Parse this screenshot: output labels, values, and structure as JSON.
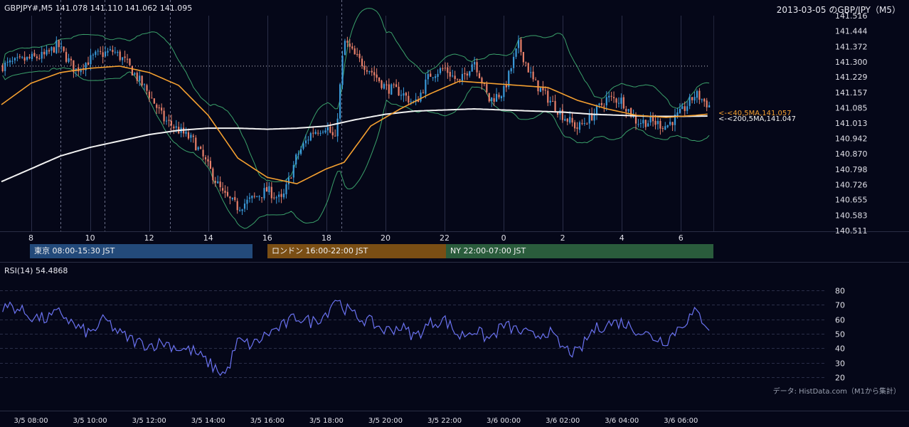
{
  "header": {
    "symbol_info": "GBPJPY#,M5 141.078 141.110 141.062 141.095",
    "title": "2013-03-05 のGBP/JPY（M5）"
  },
  "sessions": [
    {
      "label": "東京 08:00-15:30 JST",
      "color": "#234a7a"
    },
    {
      "label": "ロンドン 16:00-22:00 JST",
      "color": "#7a4e14"
    },
    {
      "label": "NY 22:00-07:00 JST",
      "color": "#2a5c3c"
    }
  ],
  "rsi": {
    "label": "RSI(14) 54.4868"
  },
  "credit": "データ: HistData.com（M1から集計）",
  "chart_data": [
    {
      "type": "candlestick",
      "name": "price",
      "y_ticks": [
        "141.516",
        "141.444",
        "141.372",
        "141.300",
        "141.229",
        "141.157",
        "141.085",
        "141.013",
        "140.942",
        "140.870",
        "140.798",
        "140.726",
        "140.655",
        "140.583",
        "140.511"
      ],
      "ylim": [
        140.511,
        141.516
      ],
      "x_ticks": [
        "8",
        "10",
        "12",
        "14",
        "16",
        "18",
        "20",
        "22",
        "0",
        "2",
        "4",
        "6"
      ],
      "x_tick_hours": [
        8,
        10,
        12,
        14,
        16,
        18,
        20,
        22,
        24,
        26,
        28,
        30
      ],
      "xlim_hours": [
        7.0,
        31.1
      ],
      "ma_labels": [
        {
          "text": "<-<40,5MA,141.057",
          "color": "#f5a030",
          "value": 141.057
        },
        {
          "text": "<-<200,5MA,141.047",
          "color": "#f0f0f0",
          "value": 141.047
        }
      ],
      "key_points": {
        "hours": [
          7.0,
          7.8,
          8.5,
          8.9,
          9.5,
          10.2,
          10.8,
          11.2,
          12.0,
          12.5,
          13.0,
          13.5,
          14.0,
          14.5,
          15.0,
          15.5,
          16.0,
          16.5,
          17.0,
          17.5,
          18.0,
          18.3,
          18.6,
          19.0,
          19.5,
          20.0,
          20.5,
          21.0,
          21.5,
          22.0,
          22.5,
          23.0,
          23.5,
          24.0,
          24.5,
          25.0,
          25.5,
          26.0,
          26.5,
          27.0,
          27.5,
          28.0,
          28.5,
          29.0,
          29.5,
          30.0,
          30.5,
          31.0
        ],
        "close": [
          141.28,
          141.31,
          141.33,
          141.38,
          141.26,
          141.33,
          141.35,
          141.3,
          141.15,
          141.03,
          140.98,
          140.93,
          140.81,
          140.68,
          140.62,
          140.66,
          140.7,
          140.65,
          140.86,
          140.97,
          141.0,
          140.93,
          141.4,
          141.32,
          141.26,
          141.18,
          141.16,
          141.1,
          141.24,
          141.27,
          141.2,
          141.31,
          141.12,
          141.16,
          141.38,
          141.21,
          141.13,
          141.05,
          140.99,
          141.05,
          141.13,
          141.12,
          141.02,
          141.02,
          141.0,
          141.06,
          141.15,
          141.09
        ]
      },
      "sma40_points": {
        "hours": [
          7.0,
          8.0,
          9.0,
          10.0,
          11.0,
          12.0,
          13.0,
          14.0,
          15.0,
          16.0,
          17.0,
          18.0,
          18.6,
          19.5,
          20.5,
          21.5,
          22.5,
          23.5,
          24.5,
          25.5,
          26.5,
          27.5,
          28.5,
          29.5,
          30.5,
          31.0
        ],
        "values": [
          141.1,
          141.2,
          141.25,
          141.27,
          141.28,
          141.25,
          141.19,
          141.05,
          140.85,
          140.76,
          140.73,
          140.8,
          140.83,
          141.0,
          141.08,
          141.15,
          141.21,
          141.2,
          141.19,
          141.18,
          141.12,
          141.08,
          141.05,
          141.04,
          141.05,
          141.057
        ]
      },
      "sma200_points": {
        "hours": [
          7.0,
          8.0,
          9.0,
          10.0,
          11.0,
          12.0,
          13.0,
          14.0,
          15.0,
          16.0,
          17.0,
          18.0,
          19.0,
          20.0,
          21.0,
          22.0,
          23.0,
          24.0,
          25.0,
          26.0,
          27.0,
          28.0,
          29.0,
          30.0,
          31.0
        ],
        "values": [
          140.74,
          140.8,
          140.86,
          140.9,
          140.93,
          140.96,
          140.98,
          140.99,
          140.99,
          140.985,
          140.99,
          141.0,
          141.03,
          141.055,
          141.07,
          141.075,
          141.08,
          141.075,
          141.07,
          141.065,
          141.055,
          141.05,
          141.045,
          141.045,
          141.047
        ]
      },
      "dotted_level": 141.28
    },
    {
      "type": "line",
      "name": "RSI(14)",
      "y_ticks": [
        "80",
        "70",
        "60",
        "50",
        "40",
        "30",
        "20"
      ],
      "ylim": [
        20,
        80
      ],
      "x_ticks": [
        "3/5 08:00",
        "3/5 10:00",
        "3/5 12:00",
        "3/5 14:00",
        "3/5 16:00",
        "3/5 18:00",
        "3/5 20:00",
        "3/5 22:00",
        "3/6 00:00",
        "3/6 02:00",
        "3/6 04:00",
        "3/6 06:00"
      ],
      "key_points": {
        "hours": [
          7.0,
          7.3,
          8.0,
          8.5,
          9.0,
          9.5,
          10.0,
          10.5,
          11.0,
          11.5,
          12.0,
          12.5,
          13.0,
          13.5,
          14.0,
          14.3,
          14.6,
          15.0,
          15.5,
          16.0,
          16.5,
          17.0,
          17.5,
          18.0,
          18.3,
          18.6,
          19.0,
          19.5,
          20.0,
          20.5,
          21.0,
          21.5,
          22.0,
          22.5,
          23.0,
          23.5,
          24.0,
          24.5,
          25.0,
          25.5,
          26.0,
          26.5,
          27.0,
          27.5,
          28.0,
          28.5,
          29.0,
          29.5,
          30.0,
          30.5,
          31.0
        ],
        "values": [
          65,
          70,
          62,
          60,
          65,
          55,
          50,
          60,
          50,
          45,
          42,
          44,
          40,
          38,
          30,
          25,
          22,
          45,
          42,
          50,
          55,
          62,
          58,
          64,
          75,
          68,
          62,
          58,
          52,
          55,
          48,
          57,
          60,
          48,
          53,
          46,
          56,
          52,
          48,
          52,
          40,
          36,
          52,
          57,
          58,
          53,
          48,
          45,
          56,
          65,
          54
        ]
      }
    }
  ]
}
